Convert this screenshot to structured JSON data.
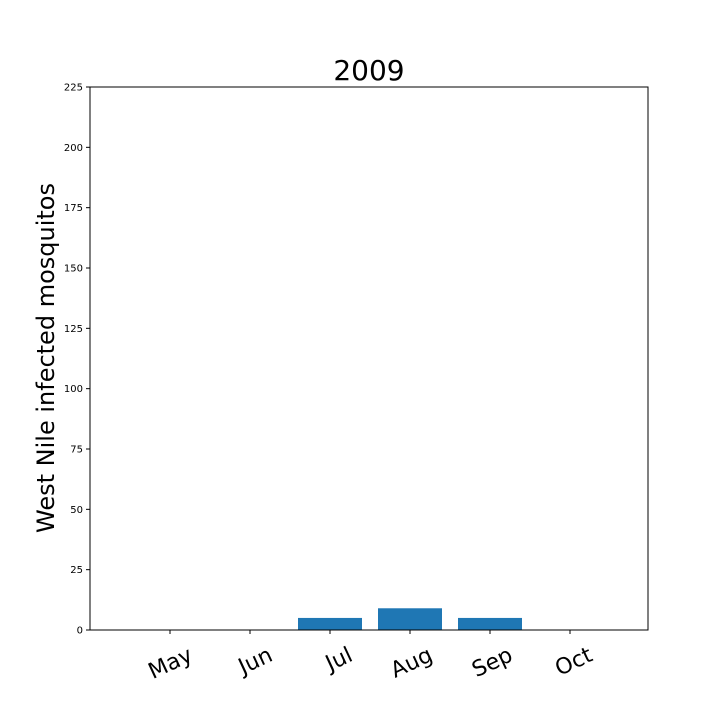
{
  "chart_data": {
    "type": "bar",
    "title": "2009",
    "xlabel": "",
    "ylabel": "West Nile infected mosquitos",
    "categories": [
      "May",
      "Jun",
      "Jul",
      "Aug",
      "Sep",
      "Oct"
    ],
    "values": [
      0,
      0,
      5,
      9,
      5,
      0
    ],
    "ylim": [
      0,
      225
    ],
    "yticks": [
      "0",
      "25",
      "50",
      "75",
      "100",
      "125",
      "150",
      "175",
      "200",
      "225"
    ],
    "bar_color": "#1f77b4",
    "grid": false,
    "legend": "none"
  }
}
